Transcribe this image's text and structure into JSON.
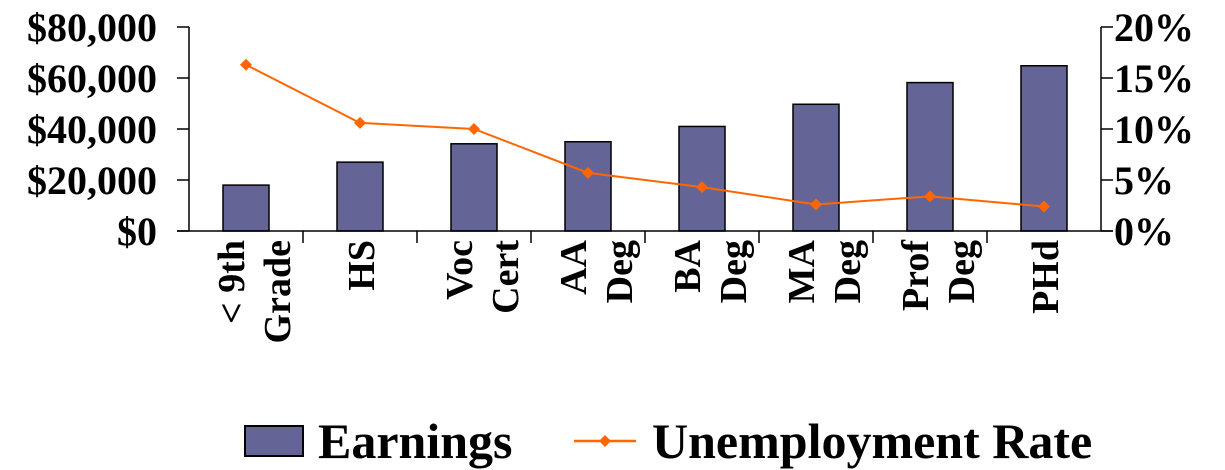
{
  "chart_data": {
    "type": "bar",
    "title": "",
    "categories": [
      [
        "< 9th",
        "Grade"
      ],
      [
        "HS"
      ],
      [
        "Voc",
        "Cert"
      ],
      [
        "AA",
        "Deg"
      ],
      [
        "BA",
        "Deg"
      ],
      [
        "MA",
        "Deg"
      ],
      [
        "Prof",
        "Deg"
      ],
      [
        "PHd"
      ]
    ],
    "series": [
      {
        "name": "Earnings",
        "type": "bar",
        "axis": "left",
        "color": "#646496",
        "values": [
          18000,
          27000,
          34200,
          35000,
          41000,
          49700,
          58200,
          64800
        ]
      },
      {
        "name": "Unemployment Rate",
        "type": "line",
        "axis": "right",
        "color": "#FF6600",
        "values": [
          16.3,
          10.6,
          10.0,
          5.7,
          4.3,
          2.6,
          3.4,
          2.4
        ]
      }
    ],
    "y_left": {
      "min": 0,
      "max": 80000,
      "ticks": [
        "$0",
        "$20,000",
        "$40,000",
        "$60,000",
        "$80,000"
      ]
    },
    "y_right": {
      "min": 0,
      "max": 20,
      "ticks": [
        "0%",
        "5%",
        "10%",
        "15%",
        "20%"
      ]
    },
    "legend_position": "bottom",
    "grid": false
  }
}
